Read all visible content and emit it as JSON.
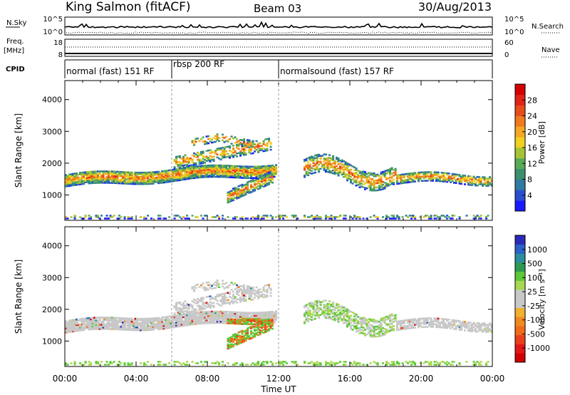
{
  "header": {
    "site": "King Salmon (fitACF)",
    "beam": "Beam 03",
    "date": "30/Aug/2013"
  },
  "top_panels": {
    "nsky_label": "N.Sky",
    "nsky_ticks": [
      "10^5",
      "10^0"
    ],
    "nsearch_label": "N.Search",
    "nsearch_ticks": [
      "10^5",
      "10^0"
    ],
    "freq_label": "Freq.",
    "freq_unit": "[MHz]",
    "freq_ticks": [
      "18",
      "8"
    ],
    "nave_label": "Nave",
    "nave_ticks": [
      "60",
      "0"
    ],
    "cpid_label": "CPID"
  },
  "cpid_segments": [
    {
      "label": "normal (fast) 151 RF",
      "start_hour": 0,
      "end_hour": 6
    },
    {
      "label": "rbsp 200 RF",
      "start_hour": 6,
      "end_hour": 12
    },
    {
      "label": "normalsound (fast) 157 RF",
      "start_hour": 12,
      "end_hour": 24
    }
  ],
  "chart_data": [
    {
      "type": "heatmap",
      "parameter": "Power",
      "xlabel": "",
      "ylabel": "Slant Range [km]",
      "xlim": [
        0,
        24
      ],
      "ylim": [
        200,
        4600
      ],
      "yticks": [
        1000,
        2000,
        3000,
        4000
      ],
      "colorbar": {
        "label": "Power [dB]",
        "ticks": [
          "4",
          "8",
          "12",
          "16",
          "20",
          "24",
          "28"
        ],
        "colors": [
          "#1a1aff",
          "#2a4ecf",
          "#2f7aa0",
          "#3b8f6e",
          "#5aaa58",
          "#a6c235",
          "#f0d020",
          "#f5a623",
          "#f07a1e",
          "#e84c1a",
          "#e02418",
          "#d40000"
        ]
      }
    },
    {
      "type": "heatmap",
      "parameter": "Velocity",
      "xlabel": "Time UT",
      "ylabel": "Slant Range [km]",
      "xlim": [
        0,
        24
      ],
      "ylim": [
        200,
        4600
      ],
      "yticks": [
        1000,
        2000,
        3000,
        4000
      ],
      "xticks": [
        "00:00",
        "04:00",
        "08:00",
        "12:00",
        "16:00",
        "20:00",
        "00:00"
      ],
      "colorbar": {
        "label": "Velocity [m s⁻¹]",
        "ticks": [
          "1000",
          "500",
          "100",
          "25",
          "-25",
          "-100",
          "-500",
          "-1000"
        ],
        "colors": [
          "#2a2ab8",
          "#2a60c8",
          "#2a8e9e",
          "#2e9a50",
          "#5cc83a",
          "#a8d850",
          "#c8c8c8",
          "#c8c8c8",
          "#f0b030",
          "#f08a20",
          "#f06a1a",
          "#e8401a",
          "#e01818",
          "#d00000"
        ]
      }
    }
  ]
}
